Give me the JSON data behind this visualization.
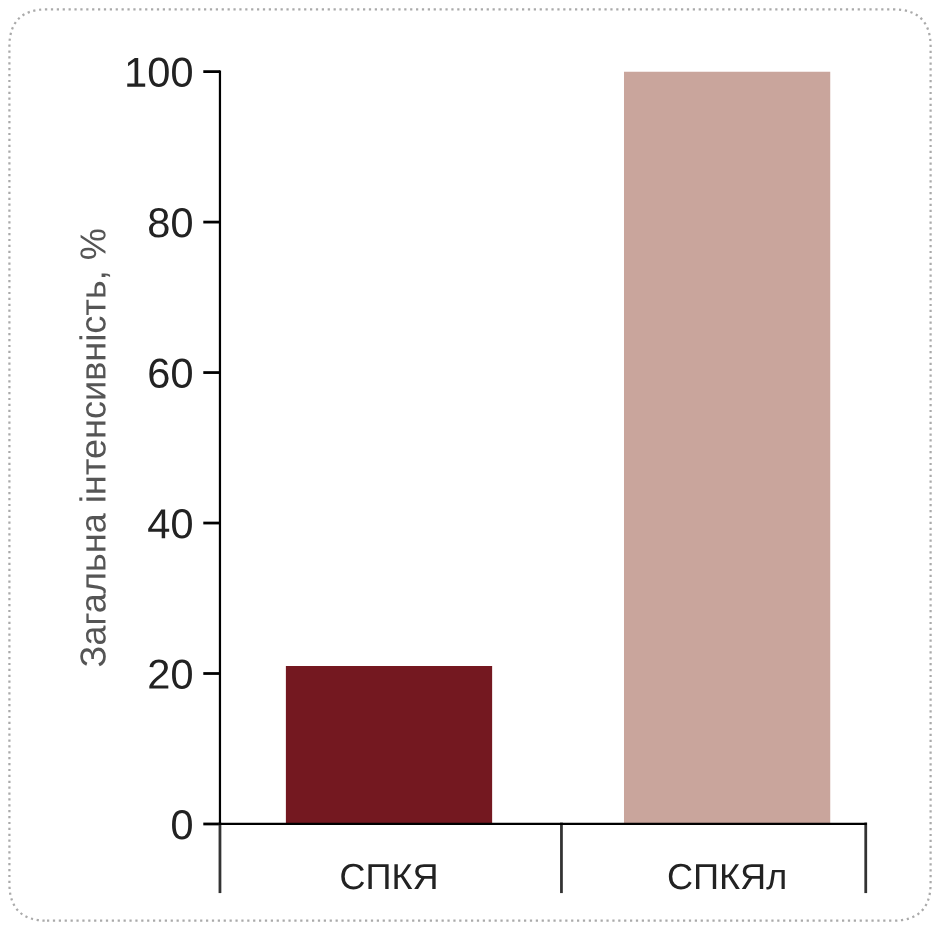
{
  "chart_data": {
    "type": "bar",
    "ylabel": "Загальна інтенсивність, %",
    "categories": [
      "СПКЯ",
      "СПКЯл"
    ],
    "values": [
      21,
      100
    ],
    "colors": [
      "#741820",
      "#c9a59c"
    ],
    "ylim": [
      0,
      100
    ],
    "yticks": [
      0,
      20,
      40,
      60,
      80,
      100
    ],
    "grid": false
  }
}
